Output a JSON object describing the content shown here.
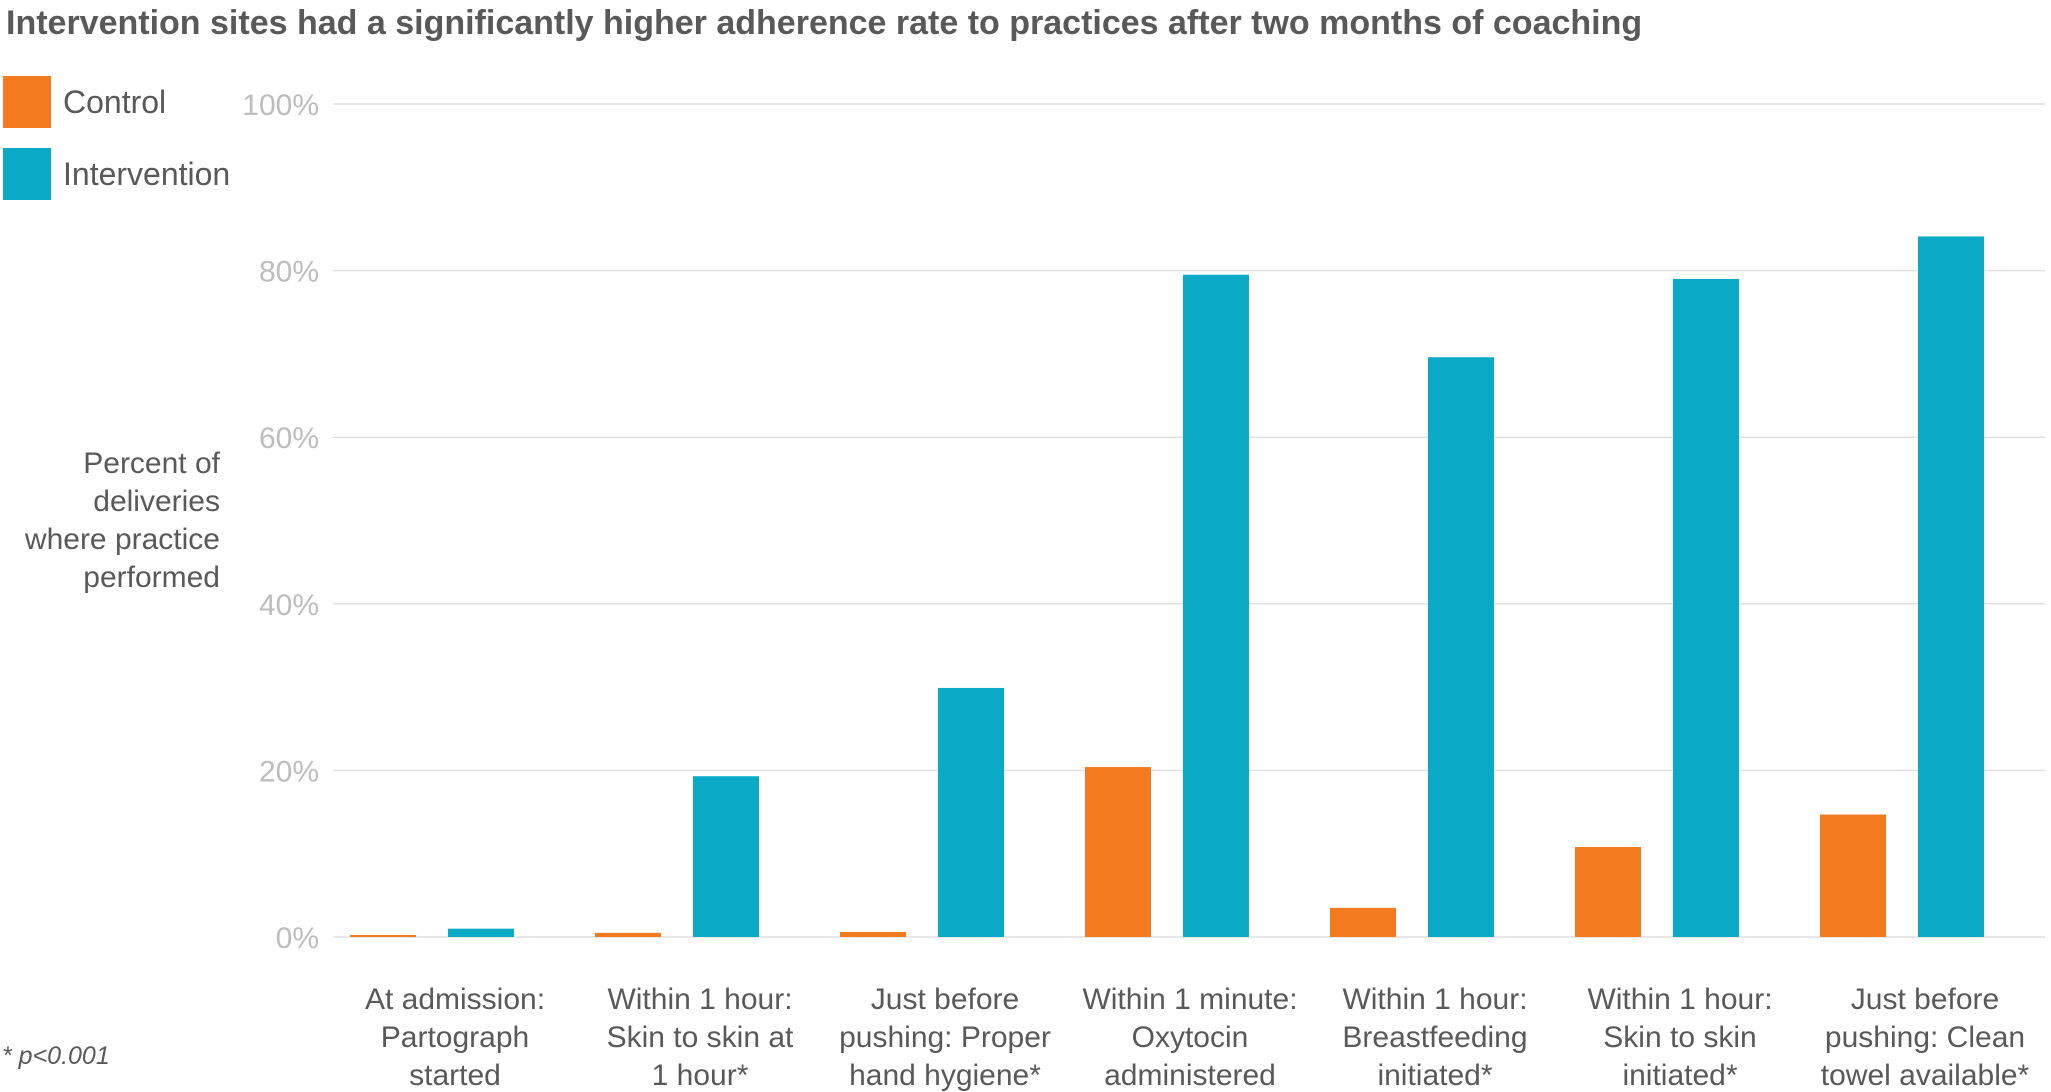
{
  "title": "Intervention sites had a significantly higher adherence rate to practices after two months of coaching",
  "legend": [
    {
      "label": "Control",
      "color": "#f47a20"
    },
    {
      "label": "Intervention",
      "color": "#0aa9c6"
    }
  ],
  "ylabel_lines": [
    "Percent of",
    "deliveries",
    "where practice",
    "performed"
  ],
  "footnote": "* p<0.001",
  "chart_data": {
    "type": "bar",
    "title": "Intervention sites had a significantly higher adherence rate to practices after two months of coaching",
    "xlabel": "",
    "ylabel": "Percent of deliveries where practice performed",
    "ylim": [
      0,
      100
    ],
    "yticks": [
      0,
      20,
      40,
      60,
      80,
      100
    ],
    "ytick_labels": [
      "0%",
      "20%",
      "40%",
      "60%",
      "80%",
      "100%"
    ],
    "grid": true,
    "legend_position": "top-left",
    "categories": [
      [
        "At admission:",
        "Partograph",
        "started"
      ],
      [
        "Within 1 hour:",
        "Skin to skin at",
        "1 hour*"
      ],
      [
        "Just before",
        "pushing: Proper",
        "hand hygiene*"
      ],
      [
        "Within 1 minute:",
        "Oxytocin",
        "administered"
      ],
      [
        "Within 1 hour:",
        "Breastfeeding",
        "initiated*"
      ],
      [
        "Within 1 hour:",
        "Skin to skin",
        "initiated*"
      ],
      [
        "Just before",
        "pushing: Clean",
        "towel available*"
      ]
    ],
    "series": [
      {
        "name": "Control",
        "color": "#f47a20",
        "values": [
          0.2,
          0.5,
          0.6,
          20.4,
          3.5,
          10.8,
          14.7
        ]
      },
      {
        "name": "Intervention",
        "color": "#0aa9c6",
        "values": [
          1.0,
          19.3,
          29.9,
          79.5,
          69.6,
          79.0,
          84.1
        ]
      }
    ]
  }
}
